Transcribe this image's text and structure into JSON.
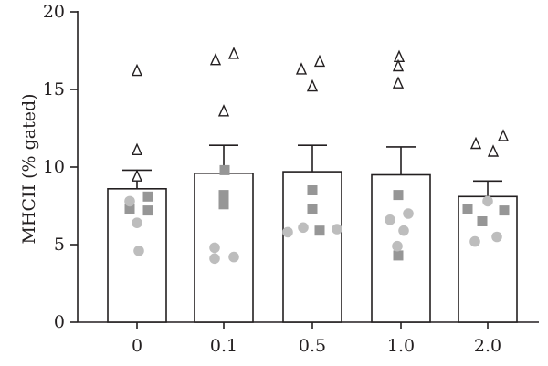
{
  "chart_data": {
    "type": "bar",
    "title": "",
    "xlabel": "",
    "ylabel": "MHCII (% gated)",
    "ylim": [
      0,
      20
    ],
    "yticks": [
      0,
      5,
      10,
      15,
      20
    ],
    "grid": false,
    "categories": [
      "0",
      "0.1",
      "0.5",
      "1.0",
      "2.0"
    ],
    "bar_means": [
      8.6,
      9.6,
      9.7,
      9.5,
      8.1
    ],
    "bar_sem": [
      1.2,
      1.8,
      1.7,
      1.8,
      1.0
    ],
    "colors": {
      "bar_edge": "#231f20",
      "bar_fill": "#ffffff",
      "circle": "#bdbdbd",
      "square": "#969696",
      "triangle": "#231f20"
    },
    "points": [
      {
        "category": "0",
        "shape": "triangle",
        "values": [
          16.2,
          11.1,
          9.4
        ]
      },
      {
        "category": "0",
        "shape": "square",
        "values": [
          8.1,
          7.3,
          7.2
        ]
      },
      {
        "category": "0",
        "shape": "circle",
        "values": [
          7.8,
          6.4,
          4.6
        ]
      },
      {
        "category": "0.1",
        "shape": "triangle",
        "values": [
          16.9,
          17.3,
          13.6
        ]
      },
      {
        "category": "0.1",
        "shape": "square",
        "values": [
          9.8,
          8.2,
          7.6
        ]
      },
      {
        "category": "0.1",
        "shape": "circle",
        "values": [
          4.8,
          4.1,
          4.2
        ]
      },
      {
        "category": "0.5",
        "shape": "triangle",
        "values": [
          16.3,
          16.8,
          15.2
        ]
      },
      {
        "category": "0.5",
        "shape": "square",
        "values": [
          8.5,
          7.3,
          5.9
        ]
      },
      {
        "category": "0.5",
        "shape": "circle",
        "values": [
          5.8,
          6.1,
          6.0
        ]
      },
      {
        "category": "1.0",
        "shape": "triangle",
        "values": [
          17.1,
          16.5,
          15.4
        ]
      },
      {
        "category": "1.0",
        "shape": "square",
        "values": [
          8.2,
          4.3
        ]
      },
      {
        "category": "1.0",
        "shape": "circle",
        "values": [
          6.6,
          7.0,
          5.9,
          4.9
        ]
      },
      {
        "category": "2.0",
        "shape": "triangle",
        "values": [
          11.5,
          12.0,
          11.0
        ]
      },
      {
        "category": "2.0",
        "shape": "square",
        "values": [
          7.3,
          6.5,
          7.2
        ]
      },
      {
        "category": "2.0",
        "shape": "circle",
        "values": [
          7.8,
          5.2,
          5.5
        ]
      }
    ]
  }
}
